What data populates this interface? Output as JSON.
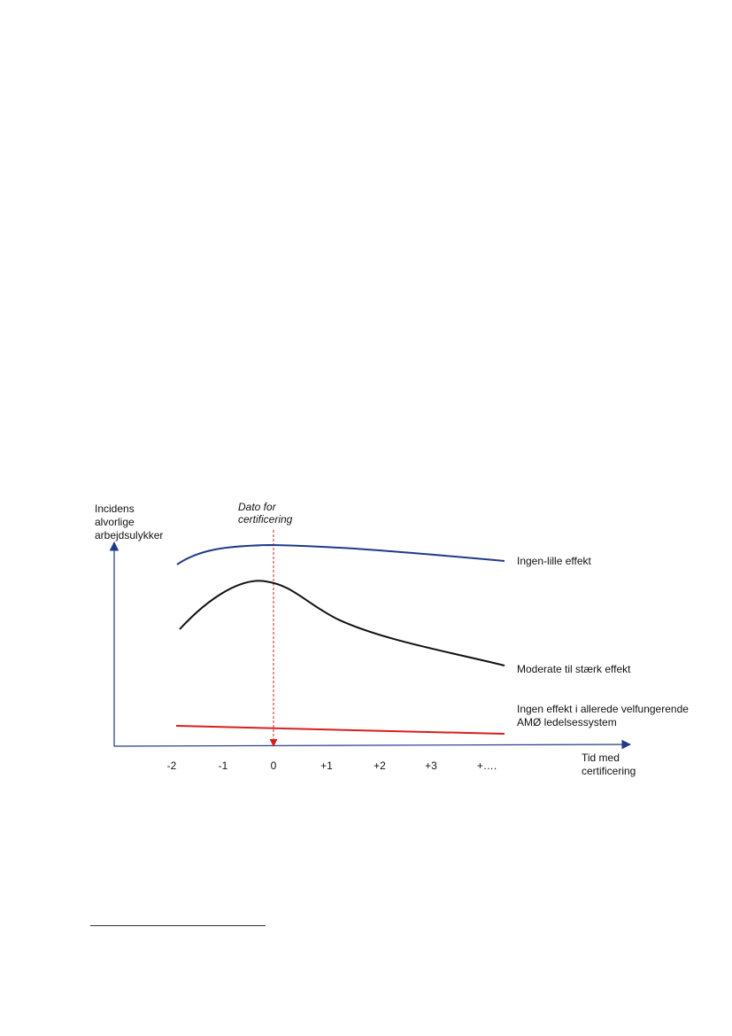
{
  "diagram": {
    "y_axis_label": [
      "Incidens",
      "alvorlige",
      "arbejdsulykker"
    ],
    "x_axis_label": [
      "Tid med",
      "certificering"
    ],
    "certification_marker_label": [
      "Dato for",
      "certificering"
    ],
    "x_ticks": [
      "-2",
      "-1",
      "0",
      "+1",
      "+2",
      "+3",
      "+…."
    ],
    "curves": [
      {
        "name": "ingen-lille",
        "label": [
          "Ingen-lille effekt"
        ],
        "color": "#1f3a8a"
      },
      {
        "name": "moderate",
        "label": [
          "Moderate til stærk effekt"
        ],
        "color": "#111111"
      },
      {
        "name": "ingen-effekt",
        "label": [
          "Ingen effekt i allerede velfungerende",
          "AMØ ledelsessystem"
        ],
        "color": "#d62020"
      }
    ],
    "axis_color": "#1f3a8a",
    "marker_color": "#d62020"
  }
}
